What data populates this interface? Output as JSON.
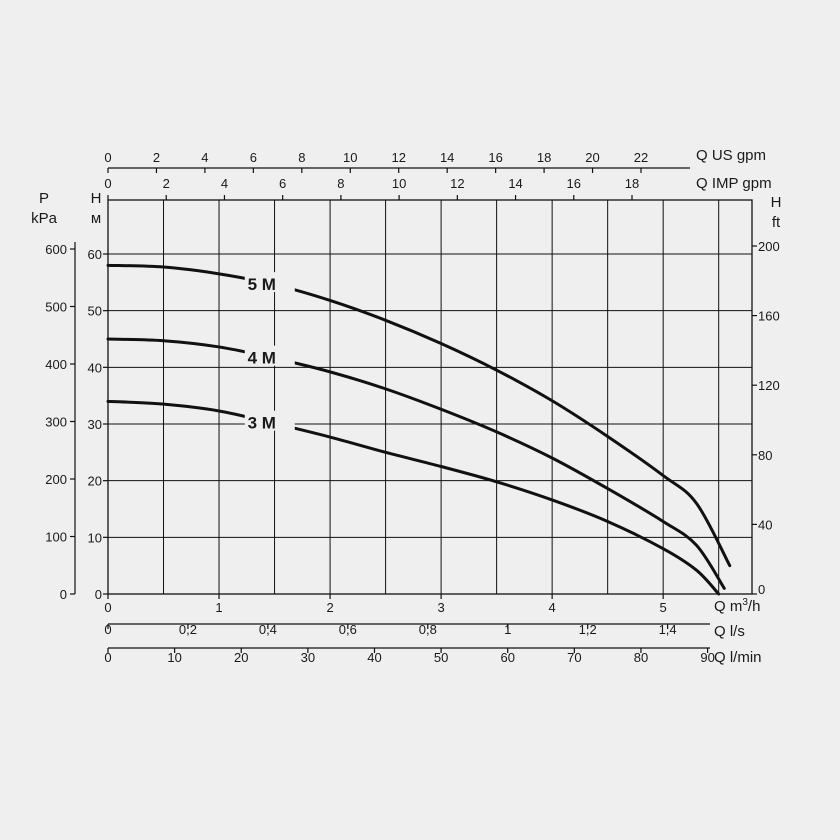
{
  "chart_data": {
    "type": "line",
    "x_unit_primary": "Q m³/h",
    "x_range": [
      0,
      5.8
    ],
    "y_range_m": [
      0,
      60
    ],
    "series": [
      {
        "name": "5 M",
        "x": [
          0,
          0.5,
          1,
          1.5,
          2,
          2.5,
          3,
          3.5,
          4,
          4.5,
          5,
          5.3,
          5.6
        ],
        "y": [
          58,
          57.7,
          56.5,
          54.6,
          51.8,
          48.3,
          44.2,
          39.5,
          34.1,
          27.8,
          20.9,
          16.0,
          5.0
        ]
      },
      {
        "name": "4 M",
        "x": [
          0,
          0.5,
          1,
          1.5,
          2,
          2.5,
          3,
          3.5,
          4,
          4.5,
          5,
          5.3,
          5.55
        ],
        "y": [
          45,
          44.7,
          43.6,
          41.6,
          39.2,
          36.2,
          32.6,
          28.6,
          24.0,
          18.6,
          12.8,
          8.6,
          1.0
        ]
      },
      {
        "name": "3 M",
        "x": [
          0,
          0.5,
          1,
          1.5,
          2,
          2.5,
          3,
          3.5,
          4,
          4.5,
          5,
          5.3,
          5.5
        ],
        "y": [
          34,
          33.5,
          32.3,
          30.1,
          27.7,
          25.0,
          22.5,
          19.8,
          16.6,
          12.8,
          8.0,
          4.2,
          0.0
        ]
      }
    ],
    "axes": {
      "p_kpa": {
        "title": "P",
        "unit": "kPa",
        "ticks": [
          "0",
          "100",
          "200",
          "300",
          "400",
          "500",
          "600"
        ],
        "values": [
          0,
          100,
          200,
          300,
          400,
          500,
          600
        ]
      },
      "h_m": {
        "title": "H",
        "unit": "м",
        "ticks": [
          "0",
          "10",
          "20",
          "30",
          "40",
          "50",
          "60"
        ],
        "values": [
          0,
          10,
          20,
          30,
          40,
          50,
          60
        ]
      },
      "h_ft": {
        "title": "H",
        "unit": "ft",
        "ticks": [
          "0",
          "40",
          "80",
          "120",
          "160",
          "200"
        ],
        "values": [
          0,
          40,
          80,
          120,
          160,
          200
        ]
      },
      "q_us_gpm": {
        "label": "Q US gpm",
        "ticks": [
          "0",
          "2",
          "4",
          "6",
          "8",
          "10",
          "12",
          "14",
          "16",
          "18",
          "20",
          "22"
        ],
        "values": [
          0,
          2,
          4,
          6,
          8,
          10,
          12,
          14,
          16,
          18,
          20,
          22
        ]
      },
      "q_imp_gpm": {
        "label": "Q IMP gpm",
        "ticks": [
          "0",
          "2",
          "4",
          "6",
          "8",
          "10",
          "12",
          "14",
          "16",
          "18"
        ],
        "values": [
          0,
          2,
          4,
          6,
          8,
          10,
          12,
          14,
          16,
          18
        ]
      },
      "q_m3h": {
        "label_prefix": "Q m",
        "label_sup": "3",
        "label_suffix": "/h",
        "ticks": [
          "0",
          "1",
          "2",
          "3",
          "4",
          "5"
        ],
        "values": [
          0,
          1,
          2,
          3,
          4,
          5
        ]
      },
      "q_ls": {
        "label": "Q l/s",
        "ticks": [
          "0",
          "0,2",
          "0,4",
          "0,6",
          "0,8",
          "1",
          "1,2",
          "1,4"
        ],
        "values": [
          0,
          0.2,
          0.4,
          0.6,
          0.8,
          1,
          1.2,
          1.4
        ]
      },
      "q_lmin": {
        "label": "Q l/min",
        "ticks": [
          "0",
          "10",
          "20",
          "30",
          "40",
          "50",
          "60",
          "70",
          "80",
          "90"
        ],
        "values": [
          0,
          10,
          20,
          30,
          40,
          50,
          60,
          70,
          80,
          90
        ]
      }
    },
    "grid": true
  }
}
